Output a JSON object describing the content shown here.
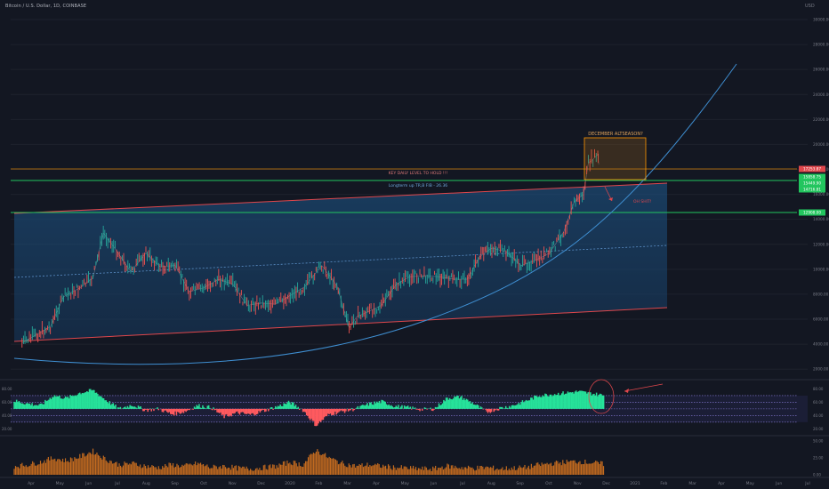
{
  "header": {
    "symbol_title": "Bitcoin / U.S. Dollar, 1D, COINBASE",
    "currency": "USD"
  },
  "colors": {
    "background": "#131722",
    "channel_fill": "#1f4e7a",
    "channel_edge": "#e0474c",
    "curve": "#3f8fd2",
    "green_level": "#22c55e",
    "orange_level": "#ff9800",
    "candle_up": "#26a69a",
    "candle_down": "#ef5350",
    "rsi_up": "#26e29a",
    "rsi_down": "#ff5a5f",
    "volume": "#c26a1f",
    "highlight_box": "#a86a1a"
  },
  "annotations": {
    "december_altseason": "DECEMBER ALTSEASON?",
    "key_level": "KEY DAILY LEVEL TO HOLD !!!",
    "log_line": "Longterm up TR,B FIB - 26.36",
    "oh_shit": "OH SHIT!"
  },
  "chart_data": [
    {
      "type": "line",
      "title": "Bitcoin / U.S. Dollar, 1D, COINBASE",
      "series": [
        {
          "x": [
            "2019-04-01",
            "2019-04-15",
            "2019-05-01",
            "2019-05-15",
            "2019-06-01",
            "2019-06-15",
            "2019-06-26",
            "2019-07-10",
            "2019-07-25",
            "2019-08-10",
            "2019-08-25",
            "2019-09-10",
            "2019-09-25",
            "2019-10-10",
            "2019-10-26",
            "2019-11-10",
            "2019-11-25",
            "2019-12-10",
            "2019-12-25",
            "2020-01-10",
            "2020-01-25",
            "2020-02-12",
            "2020-02-28",
            "2020-03-12",
            "2020-03-20",
            "2020-04-01",
            "2020-04-15",
            "2020-05-01",
            "2020-05-15",
            "2020-06-01",
            "2020-06-15",
            "2020-07-01",
            "2020-07-15",
            "2020-07-28",
            "2020-08-10",
            "2020-08-25",
            "2020-09-10",
            "2020-09-25",
            "2020-10-10",
            "2020-10-25",
            "2020-11-05",
            "2020-11-15",
            "2020-11-20",
            "2020-11-25",
            "2020-11-30",
            "2020-12-01"
          ],
          "values": [
            4100,
            4700,
            5400,
            7800,
            8500,
            9300,
            12900,
            11500,
            9800,
            11300,
            10200,
            10300,
            8200,
            8500,
            9200,
            8800,
            7100,
            7300,
            7200,
            7900,
            8600,
            10300,
            8700,
            5300,
            6200,
            6600,
            7100,
            8800,
            9400,
            9500,
            9400,
            9200,
            9200,
            11000,
            11700,
            11400,
            10300,
            10700,
            11300,
            13000,
            15400,
            16000,
            18500,
            18800,
            19200,
            18400
          ]
        }
      ],
      "ylim": [
        1800,
        30000
      ],
      "yticks": [
        "30000.00",
        "28000.00",
        "26000.00",
        "24000.00",
        "22000.00",
        "20000.00",
        "18000.00",
        "16000.00",
        "14000.00",
        "12000.00",
        "10000.00",
        "8000.00",
        "6000.00",
        "4000.00",
        "2000.00"
      ],
      "xticks": [
        "Apr",
        "May",
        "Jun",
        "Jul",
        "Aug",
        "Sep",
        "Oct",
        "Nov",
        "Dec",
        "2020",
        "Feb",
        "Mar",
        "Apr",
        "May",
        "Jun",
        "Jul",
        "Aug",
        "Sep",
        "Oct",
        "Nov",
        "Dec",
        "2021",
        "Feb",
        "Mar",
        "Apr",
        "May",
        "Jun",
        "Jul"
      ],
      "price_labels": [
        "17253.87",
        "15858.75",
        "15449.90",
        "14716.81",
        "12908.00"
      ]
    },
    {
      "type": "area",
      "rsi_values": [
        62,
        58,
        55,
        70,
        66,
        74,
        78,
        63,
        50,
        56,
        48,
        50,
        42,
        46,
        55,
        52,
        38,
        44,
        41,
        47,
        53,
        60,
        48,
        25,
        42,
        46,
        50,
        57,
        61,
        54,
        52,
        49,
        50,
        66,
        68,
        58,
        45,
        51,
        55,
        62,
        70,
        72,
        74,
        76,
        73,
        70
      ],
      "yticks": [
        "80.00",
        "60.00",
        "40.00",
        "20.00"
      ],
      "bands": [
        70,
        60,
        50,
        40,
        30
      ]
    },
    {
      "type": "bar",
      "volume_values": [
        12,
        14,
        18,
        24,
        20,
        26,
        34,
        22,
        14,
        16,
        12,
        10,
        14,
        12,
        16,
        10,
        12,
        9,
        8,
        10,
        12,
        18,
        14,
        36,
        24,
        16,
        12,
        14,
        12,
        10,
        9,
        8,
        8,
        12,
        10,
        9,
        10,
        8,
        9,
        10,
        14,
        16,
        18,
        19,
        17,
        15
      ],
      "yticks": [
        "50.00",
        "25.00",
        "0.00"
      ]
    }
  ]
}
